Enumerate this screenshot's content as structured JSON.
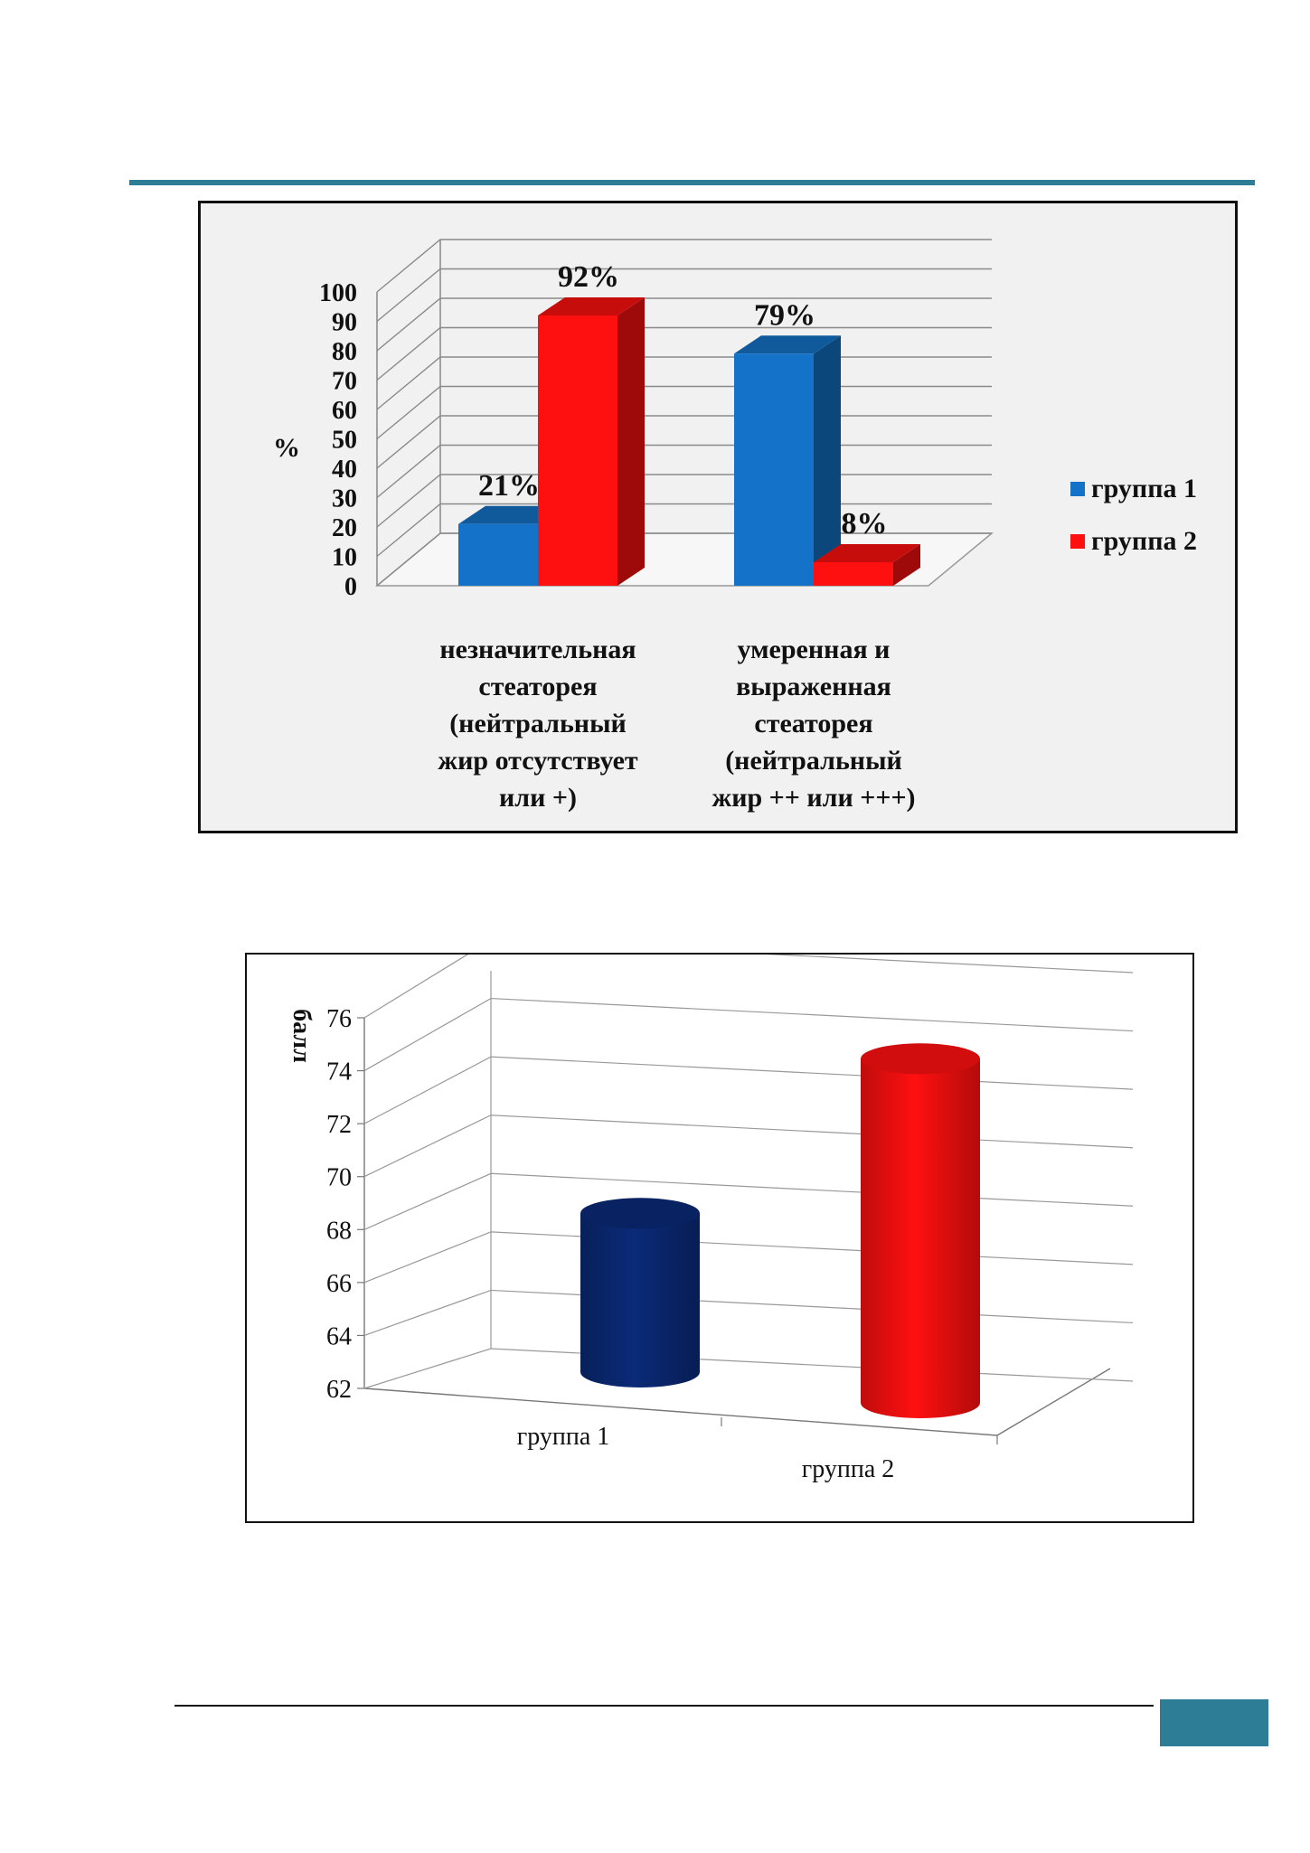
{
  "colors": {
    "accent": "#2e7d97",
    "series1": "#1473c8",
    "series2": "#ff1010",
    "cyl1": "#0b2a78",
    "cyl2": "#ff1010"
  },
  "chart_data": [
    {
      "type": "bar",
      "projection": "3d",
      "ylabel": "%",
      "ylim": [
        0,
        100
      ],
      "yticks": [
        "0",
        "10",
        "20",
        "30",
        "40",
        "50",
        "60",
        "70",
        "80",
        "90",
        "100"
      ],
      "categories": [
        [
          "незначительная",
          "стеаторея",
          "(нейтральный",
          "жир отсутствует",
          "или +)"
        ],
        [
          "умеренная и",
          "выраженная",
          "стеаторея",
          "(нейтральный",
          "жир ++ или +++)"
        ]
      ],
      "series": [
        {
          "name": "группа 1",
          "values": [
            21,
            79
          ],
          "labels": [
            "21%",
            "79%"
          ]
        },
        {
          "name": "группа 2",
          "values": [
            92,
            8
          ],
          "labels": [
            "92%",
            "8%"
          ]
        }
      ],
      "legend": "right",
      "grid": true
    },
    {
      "type": "bar",
      "projection": "3d-cylinder",
      "ylabel": "балл",
      "ylim": [
        62,
        76
      ],
      "yticks": [
        "62",
        "64",
        "66",
        "68",
        "70",
        "72",
        "74",
        "76"
      ],
      "categories": [
        "группа 1",
        "группа 2"
      ],
      "values": [
        68,
        75
      ],
      "legend": "none",
      "grid": true
    }
  ]
}
